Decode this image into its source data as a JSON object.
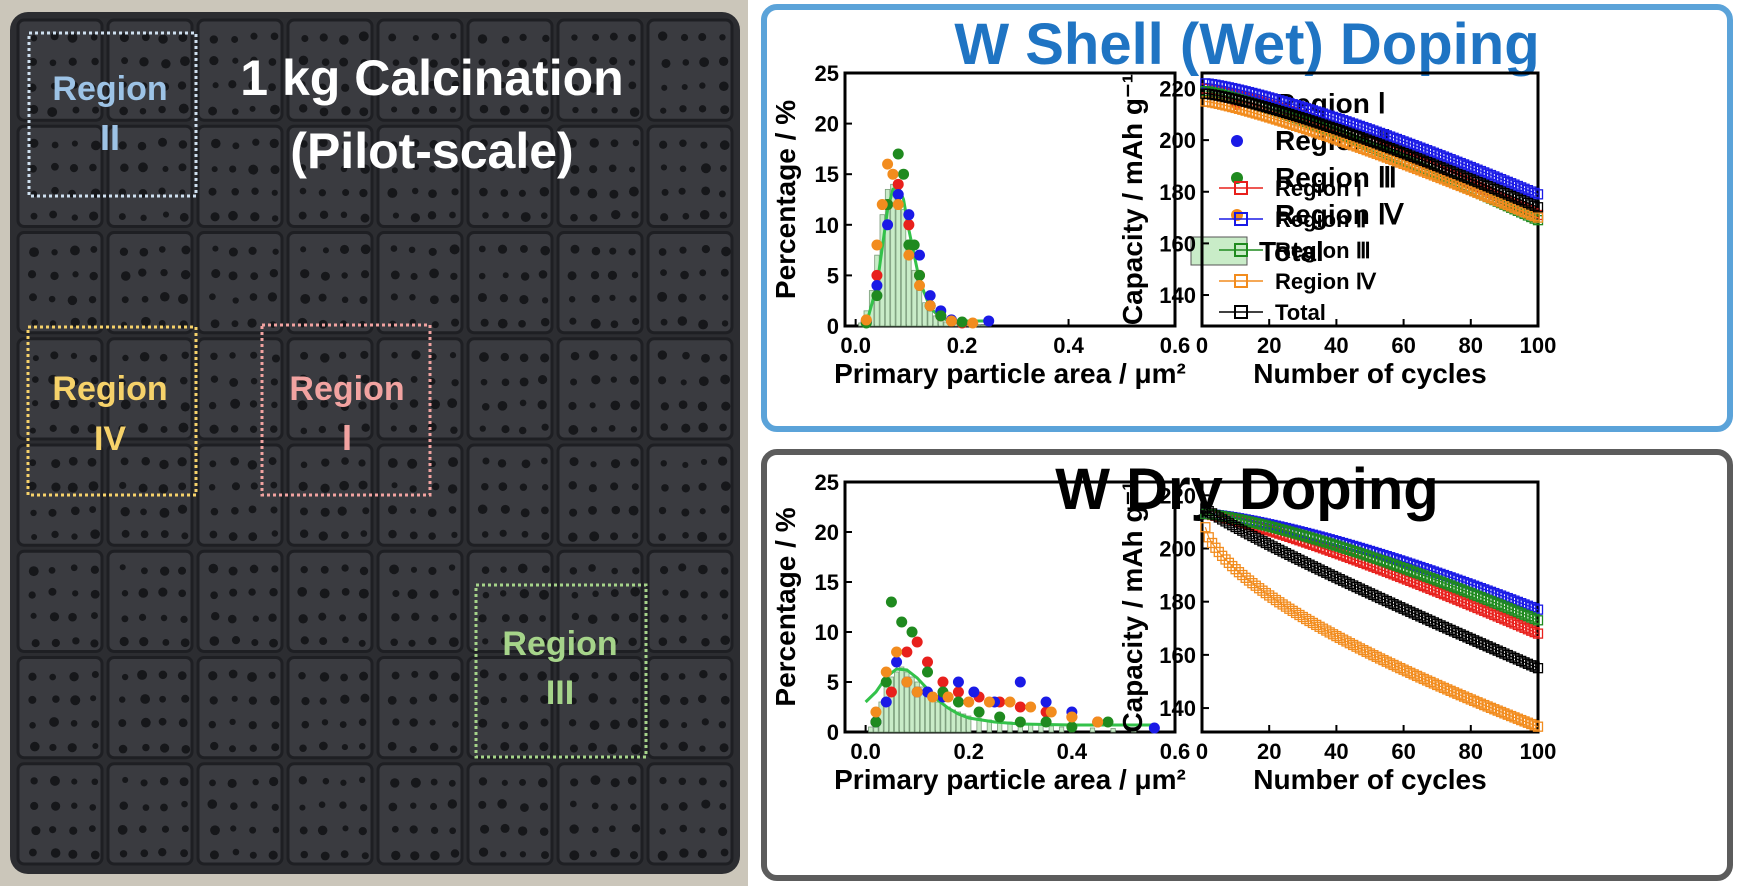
{
  "photo": {
    "title_line1": "1 kg Calcination",
    "title_line2": "(Pilot-scale)",
    "regions": [
      {
        "word": "Region",
        "numeral": "II",
        "color": "#9dc3e6"
      },
      {
        "word": "Region",
        "numeral": "IV",
        "color": "#f6d26a"
      },
      {
        "word": "Region",
        "numeral": "I",
        "color": "#f2a3a1"
      },
      {
        "word": "Region",
        "numeral": "III",
        "color": "#a6d48a"
      }
    ]
  },
  "panels": [
    {
      "title": "W Shell (Wet) Doping",
      "title_color": "#1f74c3",
      "border_color": "#5ba3d9"
    },
    {
      "title": "W Dry Doping",
      "title_color": "#000000",
      "border_color": "#5c5c5c"
    }
  ],
  "legend": {
    "hist": [
      "Region Ⅰ",
      "Region Ⅱ",
      "Region Ⅲ",
      "Region Ⅳ",
      "Total"
    ],
    "cyc": [
      "Region Ⅰ",
      "Region Ⅱ",
      "Region Ⅲ",
      "Region Ⅳ",
      "Total"
    ]
  },
  "colors": {
    "region1": "#e8201c",
    "region2": "#1a1ae6",
    "region3": "#1f8a1f",
    "region4": "#f28c1e",
    "total": "#000000",
    "hist_fill": "#c9ecc8",
    "fit": "#33c24a"
  },
  "chart_data": [
    {
      "type": "bar",
      "panel": "W Shell (Wet) Doping",
      "xlabel": "Primary particle area / μm²",
      "ylabel": "Percentage / %",
      "xlim": [
        -0.02,
        0.6
      ],
      "ylim": [
        0,
        25
      ],
      "xticks": [
        0.0,
        0.2,
        0.4,
        0.6
      ],
      "xtick_labels": [
        "0.0",
        "0.2",
        "0.4",
        "0.6"
      ],
      "yticks": [
        0,
        5,
        10,
        15,
        20,
        25
      ],
      "bins": [
        0.01,
        0.02,
        0.03,
        0.04,
        0.05,
        0.06,
        0.07,
        0.08,
        0.09,
        0.1,
        0.11,
        0.12,
        0.13,
        0.14,
        0.15,
        0.16,
        0.17,
        0.18,
        0.19,
        0.2,
        0.21,
        0.22,
        0.23,
        0.24,
        0.25
      ],
      "total": [
        0.3,
        1.5,
        3.5,
        7,
        11,
        13.5,
        14,
        13,
        11.5,
        8.5,
        5.5,
        3.5,
        2.3,
        1.5,
        1,
        0.6,
        0.4,
        0.3,
        0.2,
        0.15,
        0.1,
        0.1,
        0.08,
        0.06,
        0.05
      ],
      "fit": {
        "x": [
          0.02,
          0.04,
          0.06,
          0.07,
          0.08,
          0.09,
          0.1,
          0.12,
          0.14,
          0.16,
          0.18,
          0.2,
          0.25
        ],
        "y": [
          0.2,
          4,
          11.5,
          13.5,
          13.8,
          12.5,
          9.5,
          4.5,
          1.8,
          0.8,
          0.5,
          0.5,
          0.5
        ]
      },
      "series": [
        {
          "name": "Region Ⅰ",
          "x": [
            0.02,
            0.04,
            0.06,
            0.08,
            0.1,
            0.12,
            0.14,
            0.16,
            0.18,
            0.2
          ],
          "y": [
            0.5,
            5,
            12,
            14,
            10,
            5,
            2,
            1,
            0.5,
            0.3
          ]
        },
        {
          "name": "Region Ⅱ",
          "x": [
            0.02,
            0.04,
            0.06,
            0.08,
            0.1,
            0.12,
            0.14,
            0.16,
            0.18,
            0.25
          ],
          "y": [
            0.4,
            4,
            10,
            13,
            11,
            7,
            3,
            1.5,
            0.6,
            0.5
          ]
        },
        {
          "name": "Region Ⅲ",
          "x": [
            0.02,
            0.04,
            0.06,
            0.08,
            0.09,
            0.1,
            0.11,
            0.12,
            0.14,
            0.16,
            0.2
          ],
          "y": [
            0.3,
            3,
            12,
            17,
            15,
            8,
            8,
            5,
            2,
            1,
            0.4
          ]
        },
        {
          "name": "Region Ⅳ",
          "x": [
            0.02,
            0.04,
            0.05,
            0.06,
            0.07,
            0.08,
            0.1,
            0.12,
            0.14,
            0.18,
            0.22
          ],
          "y": [
            0.6,
            8,
            12,
            16,
            15,
            12,
            7,
            4,
            2,
            0.5,
            0.3
          ]
        }
      ]
    },
    {
      "type": "line",
      "panel": "W Shell (Wet) Doping",
      "xlabel": "Number of cycles",
      "ylabel": "Capacity / mAh g⁻¹",
      "xlim": [
        0,
        100
      ],
      "ylim": [
        128,
        226
      ],
      "xticks": [
        0,
        20,
        40,
        60,
        80,
        100
      ],
      "yticks": [
        140,
        160,
        180,
        200,
        220
      ],
      "series": [
        {
          "name": "Region Ⅰ",
          "start": 220,
          "end": 171,
          "curve": 1.25
        },
        {
          "name": "Region Ⅱ",
          "start": 222,
          "end": 179,
          "curve": 1.25
        },
        {
          "name": "Region Ⅲ",
          "start": 219,
          "end": 169,
          "curve": 1.2
        },
        {
          "name": "Region Ⅳ",
          "start": 215,
          "end": 170,
          "curve": 1.2
        },
        {
          "name": "Total",
          "start": 218,
          "end": 174,
          "curve": 1.25
        }
      ]
    },
    {
      "type": "bar",
      "panel": "W Dry Doping",
      "xlabel": "Primary particle area / μm²",
      "ylabel": "Percentage / %",
      "xlim": [
        -0.04,
        0.6
      ],
      "ylim": [
        0,
        25
      ],
      "xticks": [
        0.0,
        0.2,
        0.4,
        0.6
      ],
      "xtick_labels": [
        "0.0",
        "0.2",
        "0.4",
        "0.6"
      ],
      "yticks": [
        0,
        5,
        10,
        15,
        20,
        25
      ],
      "bins": [
        0.01,
        0.02,
        0.03,
        0.04,
        0.05,
        0.06,
        0.07,
        0.08,
        0.09,
        0.1,
        0.11,
        0.12,
        0.13,
        0.14,
        0.15,
        0.16,
        0.17,
        0.18,
        0.19,
        0.2,
        0.22,
        0.24,
        0.26,
        0.28,
        0.3,
        0.32,
        0.34,
        0.36,
        0.38,
        0.4,
        0.44,
        0.48,
        0.52,
        0.56
      ],
      "total": [
        0.5,
        1.5,
        3,
        4.5,
        5.5,
        6,
        6.5,
        6,
        5.5,
        5,
        4.5,
        4,
        3.5,
        3,
        2.8,
        2.5,
        2.2,
        2,
        1.8,
        1.6,
        1.4,
        1.2,
        1.1,
        1,
        0.9,
        0.8,
        0.7,
        0.6,
        0.5,
        0.45,
        0.4,
        0.35,
        0.3,
        0.25
      ],
      "fit": {
        "x": [
          0.0,
          0.02,
          0.04,
          0.06,
          0.08,
          0.1,
          0.12,
          0.14,
          0.16,
          0.18,
          0.2,
          0.25,
          0.3,
          0.4,
          0.5,
          0.56
        ],
        "y": [
          3,
          4,
          5.5,
          6.3,
          6.2,
          5.4,
          4.3,
          3.2,
          2.4,
          1.8,
          1.4,
          1.0,
          0.8,
          0.7,
          0.7,
          0.7
        ]
      },
      "series": [
        {
          "name": "Region Ⅰ",
          "x": [
            0.02,
            0.05,
            0.08,
            0.1,
            0.12,
            0.15,
            0.18,
            0.22,
            0.26,
            0.3,
            0.35,
            0.4,
            0.45
          ],
          "y": [
            1,
            4,
            8,
            9,
            7,
            5,
            4,
            3.5,
            3,
            2.5,
            2,
            1.5,
            1
          ]
        },
        {
          "name": "Region Ⅱ",
          "x": [
            0.02,
            0.04,
            0.06,
            0.08,
            0.1,
            0.12,
            0.15,
            0.18,
            0.21,
            0.25,
            0.3,
            0.35,
            0.4,
            0.56
          ],
          "y": [
            1,
            3,
            7,
            5,
            4,
            4,
            3.5,
            5,
            4,
            3,
            5,
            3,
            2,
            0.4
          ]
        },
        {
          "name": "Region Ⅲ",
          "x": [
            0.02,
            0.04,
            0.05,
            0.07,
            0.09,
            0.12,
            0.15,
            0.18,
            0.22,
            0.26,
            0.3,
            0.35,
            0.4,
            0.47
          ],
          "y": [
            1,
            5,
            13,
            11,
            10,
            6,
            4,
            3,
            2,
            1.5,
            1,
            1,
            0.5,
            1
          ]
        },
        {
          "name": "Region Ⅳ",
          "x": [
            0.02,
            0.04,
            0.06,
            0.08,
            0.1,
            0.13,
            0.16,
            0.2,
            0.24,
            0.28,
            0.32,
            0.36,
            0.4,
            0.45
          ],
          "y": [
            2,
            6,
            8,
            5,
            4,
            3.5,
            3.5,
            3,
            3,
            3,
            2.5,
            2,
            1.5,
            1
          ]
        }
      ]
    },
    {
      "type": "line",
      "panel": "W Dry Doping",
      "xlabel": "Number of cycles",
      "ylabel": "Capacity / mAh g⁻¹",
      "xlim": [
        0,
        100
      ],
      "ylim": [
        131,
        225
      ],
      "xticks": [
        0,
        20,
        40,
        60,
        80,
        100
      ],
      "yticks": [
        140,
        160,
        180,
        200,
        220
      ],
      "series": [
        {
          "name": "Region Ⅰ",
          "start": 213,
          "end": 168,
          "curve": 1.2
        },
        {
          "name": "Region Ⅱ",
          "start": 213,
          "end": 177,
          "curve": 1.35
        },
        {
          "name": "Region Ⅲ",
          "start": 213,
          "end": 173,
          "curve": 1.3
        },
        {
          "name": "Region Ⅳ",
          "start": 208,
          "end": 133,
          "curve": 0.65
        },
        {
          "name": "Total",
          "start": 215,
          "end": 155,
          "curve": 0.9
        }
      ]
    }
  ]
}
